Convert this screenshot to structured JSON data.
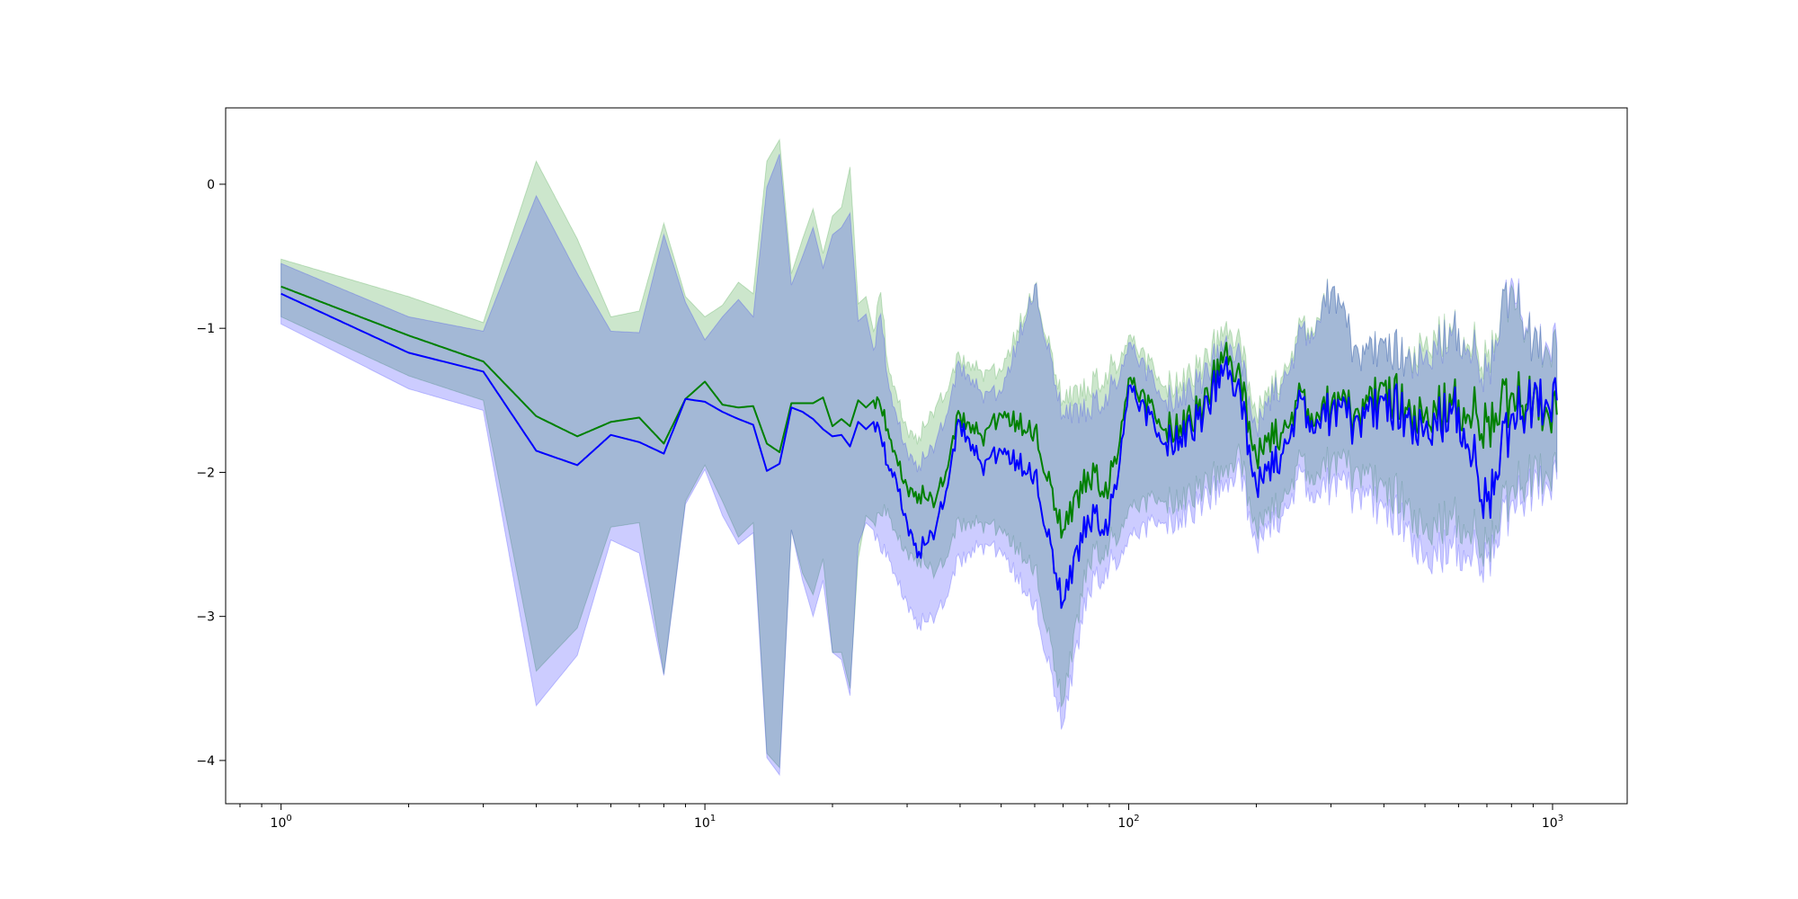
{
  "chart_data": {
    "type": "line",
    "title": "",
    "xlabel": "",
    "ylabel": "",
    "xscale": "log",
    "xlim": [
      0.74,
      1500
    ],
    "ylim": [
      -4.3,
      0.53
    ],
    "grid": false,
    "legend": "none",
    "x_ticks": [
      {
        "value": 1,
        "base": "10",
        "exp": "0"
      },
      {
        "value": 10,
        "base": "10",
        "exp": "1"
      },
      {
        "value": 100,
        "base": "10",
        "exp": "2"
      },
      {
        "value": 1000,
        "base": "10",
        "exp": "3"
      }
    ],
    "y_ticks": [
      {
        "value": 0,
        "label": "0"
      },
      {
        "value": -1,
        "label": "−1"
      },
      {
        "value": -2,
        "label": "−2"
      },
      {
        "value": -3,
        "label": "−3"
      },
      {
        "value": -4,
        "label": "−4"
      }
    ],
    "x_domain": [
      1,
      1024
    ],
    "series": [
      {
        "color": "#008000",
        "band_color": "#008000",
        "band_opacity": 0.2,
        "x": [
          1,
          2,
          3,
          4,
          5,
          6,
          7,
          8,
          9,
          10,
          11,
          12,
          13,
          14,
          15,
          16,
          17,
          18,
          19,
          20,
          21,
          22,
          23,
          24,
          25,
          26,
          27,
          28,
          30,
          32,
          35,
          40,
          45,
          50,
          60,
          70,
          80,
          90,
          100,
          120,
          150,
          170,
          180,
          200,
          220,
          250,
          300,
          350,
          400,
          450,
          500,
          600,
          700,
          800,
          900,
          1024
        ],
        "y": [
          -0.71,
          -1.05,
          -1.23,
          -1.61,
          -1.75,
          -1.65,
          -1.62,
          -1.8,
          -1.49,
          -1.37,
          -1.53,
          -1.55,
          -1.54,
          -1.8,
          -1.86,
          -1.52,
          -1.52,
          -1.52,
          -1.48,
          -1.68,
          -1.63,
          -1.68,
          -1.5,
          -1.55,
          -1.5,
          -1.55,
          -1.7,
          -1.85,
          -2.1,
          -2.15,
          -2.2,
          -1.6,
          -1.75,
          -1.6,
          -1.7,
          -2.4,
          -2.0,
          -2.1,
          -1.35,
          -1.7,
          -1.55,
          -1.1,
          -1.3,
          -1.9,
          -1.8,
          -1.5,
          -1.55,
          -1.6,
          -1.4,
          -1.55,
          -1.6,
          -1.5,
          -1.65,
          -1.45,
          -1.5,
          -1.6
        ],
        "band_upper": [
          -0.52,
          -0.78,
          -0.96,
          0.16,
          -0.38,
          -0.92,
          -0.88,
          -0.27,
          -0.78,
          -0.92,
          -0.84,
          -0.68,
          -0.76,
          0.16,
          0.31,
          -0.62,
          -0.38,
          -0.17,
          -0.48,
          -0.22,
          -0.16,
          0.12,
          -0.83,
          -0.78,
          -1.02,
          -0.75,
          -1.25,
          -1.4,
          -1.7,
          -1.75,
          -1.55,
          -1.2,
          -1.3,
          -1.3,
          -0.7,
          -1.5,
          -1.4,
          -1.3,
          -1.05,
          -1.4,
          -1.25,
          -0.95,
          -1.05,
          -1.6,
          -1.45,
          -1.05,
          -0.75,
          -1.2,
          -1.1,
          -1.2,
          -1.1,
          -1.0,
          -1.2,
          -0.7,
          -1.1,
          -1.15
        ],
        "band_lower": [
          -0.92,
          -1.33,
          -1.5,
          -3.38,
          -3.08,
          -2.38,
          -2.35,
          -3.4,
          -2.2,
          -1.95,
          -2.2,
          -2.45,
          -2.35,
          -3.95,
          -4.05,
          -2.4,
          -2.7,
          -2.85,
          -2.6,
          -3.25,
          -3.25,
          -3.5,
          -2.6,
          -2.3,
          -2.35,
          -2.3,
          -2.25,
          -2.4,
          -2.55,
          -2.6,
          -2.7,
          -2.35,
          -2.35,
          -2.4,
          -2.65,
          -3.6,
          -2.6,
          -2.5,
          -2.25,
          -2.2,
          -2.1,
          -1.95,
          -1.85,
          -2.4,
          -2.3,
          -1.95,
          -1.95,
          -2.0,
          -2.1,
          -2.2,
          -2.4,
          -2.3,
          -2.5,
          -2.1,
          -2.0,
          -2.0
        ]
      },
      {
        "color": "#0000ff",
        "band_color": "#0000ff",
        "band_opacity": 0.2,
        "x": [
          1,
          2,
          3,
          4,
          5,
          6,
          7,
          8,
          9,
          10,
          11,
          12,
          13,
          14,
          15,
          16,
          17,
          18,
          19,
          20,
          21,
          22,
          23,
          24,
          25,
          26,
          27,
          28,
          30,
          32,
          35,
          40,
          45,
          50,
          60,
          70,
          80,
          90,
          100,
          120,
          150,
          170,
          180,
          200,
          220,
          250,
          300,
          350,
          400,
          450,
          500,
          600,
          700,
          800,
          900,
          1024
        ],
        "y": [
          -0.76,
          -1.17,
          -1.3,
          -1.85,
          -1.95,
          -1.74,
          -1.79,
          -1.87,
          -1.49,
          -1.51,
          -1.58,
          -1.63,
          -1.67,
          -1.99,
          -1.94,
          -1.55,
          -1.58,
          -1.63,
          -1.7,
          -1.75,
          -1.74,
          -1.82,
          -1.65,
          -1.7,
          -1.65,
          -1.75,
          -1.95,
          -2.0,
          -2.35,
          -2.55,
          -2.4,
          -1.65,
          -1.95,
          -1.85,
          -2.0,
          -2.9,
          -2.3,
          -2.35,
          -1.4,
          -1.8,
          -1.6,
          -1.2,
          -1.4,
          -2.1,
          -2.0,
          -1.55,
          -1.6,
          -1.65,
          -1.5,
          -1.6,
          -1.7,
          -1.55,
          -2.2,
          -1.6,
          -1.5,
          -1.5
        ],
        "band_upper": [
          -0.55,
          -0.92,
          -1.02,
          -0.08,
          -0.62,
          -1.02,
          -1.03,
          -0.35,
          -0.82,
          -1.08,
          -0.92,
          -0.8,
          -0.92,
          -0.02,
          0.21,
          -0.7,
          -0.5,
          -0.3,
          -0.58,
          -0.35,
          -0.3,
          -0.2,
          -0.95,
          -0.9,
          -1.15,
          -0.9,
          -1.35,
          -1.55,
          -1.85,
          -1.95,
          -1.8,
          -1.25,
          -1.45,
          -1.45,
          -0.7,
          -1.6,
          -1.55,
          -1.45,
          -1.1,
          -1.5,
          -1.35,
          -1.05,
          -1.15,
          -1.7,
          -1.5,
          -1.1,
          -0.75,
          -1.2,
          -1.1,
          -1.2,
          -1.2,
          -1.0,
          -1.3,
          -0.65,
          -1.1,
          -1.1
        ],
        "band_lower": [
          -0.97,
          -1.42,
          -1.57,
          -3.62,
          -3.27,
          -2.47,
          -2.56,
          -3.41,
          -2.22,
          -1.98,
          -2.3,
          -2.5,
          -2.42,
          -3.98,
          -4.1,
          -2.4,
          -2.75,
          -3.0,
          -2.75,
          -3.25,
          -3.3,
          -3.55,
          -2.5,
          -2.35,
          -2.4,
          -2.55,
          -2.55,
          -2.7,
          -2.9,
          -3.05,
          -3.0,
          -2.6,
          -2.5,
          -2.55,
          -2.9,
          -3.75,
          -2.8,
          -2.65,
          -2.45,
          -2.35,
          -2.2,
          -2.05,
          -1.95,
          -2.5,
          -2.4,
          -2.05,
          -2.1,
          -2.15,
          -2.25,
          -2.35,
          -2.6,
          -2.5,
          -2.6,
          -2.2,
          -2.1,
          -2.05
        ]
      }
    ]
  }
}
